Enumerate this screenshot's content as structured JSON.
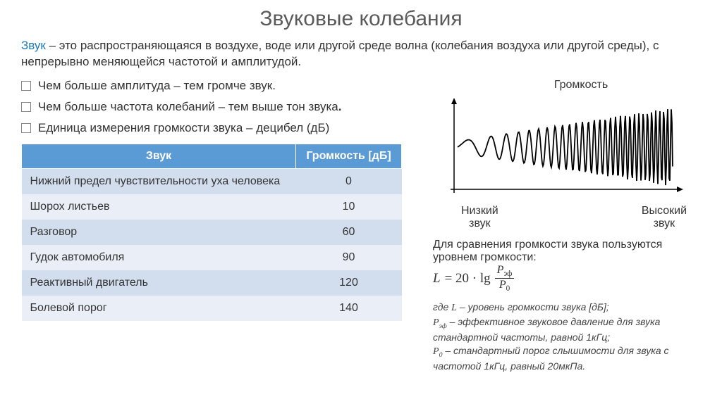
{
  "title": "Звуковые колебания",
  "intro_term": "Звук",
  "intro_rest": " – это распространяющаяся в воздухе, воде или другой среде волна (колебания воздуха или другой среды), с непрерывно меняющейся частотой и амплитудой.",
  "bullets": [
    "Чем больше амплитуда – тем громче звук.",
    "Чем больше частота колебаний – тем выше тон звука.",
    "Единица измерения громкости звука – децибел (дБ)"
  ],
  "table": {
    "headers": [
      "Звук",
      "Громкость [дБ]"
    ],
    "rows": [
      [
        "Нижний предел чувствительности уха человека",
        "0"
      ],
      [
        "Шорох листьев",
        "10"
      ],
      [
        "Разговор",
        "60"
      ],
      [
        "Гудок автомобиля",
        "90"
      ],
      [
        "Реактивный двигатель",
        "120"
      ],
      [
        "Болевой порог",
        "140"
      ]
    ]
  },
  "chart": {
    "y_label": "Громкость",
    "x_low": "Низкий звук",
    "x_high": "Высокий звук",
    "stroke": "#000000",
    "axis_color": "#000000"
  },
  "compare_text": "Для сравнения громкости звука пользуются уровнем громкости:",
  "formula": {
    "L": "L",
    "eq": "= 20 · lg",
    "num": "P",
    "num_sub": "эф",
    "den": "P",
    "den_sub": "0"
  },
  "where_lines": [
    "где L – уровень громкости звука [дБ];",
    "P_эф – эффективное звуковое давление для звука стандартной частоты, равной 1кГц;",
    "P_0 – стандартный порог слышимости для звука с частотой 1кГц, равный 20мкПа."
  ]
}
